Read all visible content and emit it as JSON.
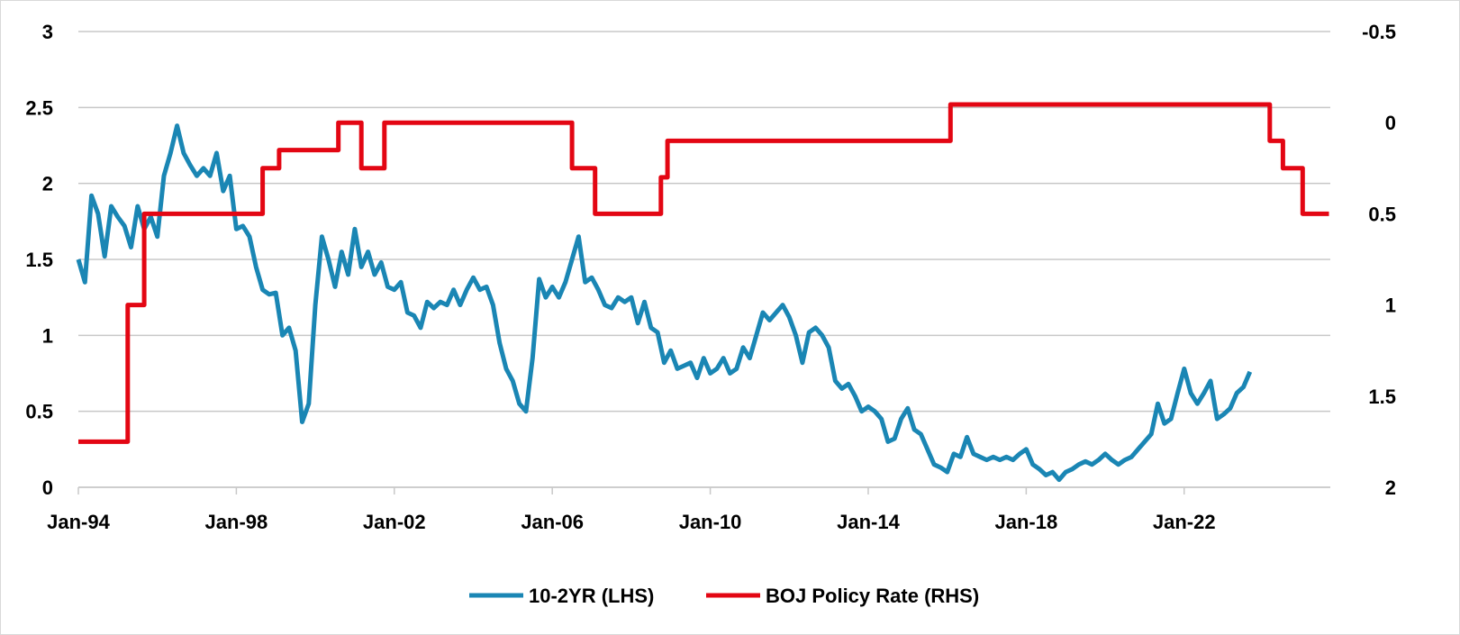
{
  "chart_data": {
    "type": "line",
    "title": "",
    "xlabel": "",
    "ylabel_left": "",
    "ylabel_right": "",
    "x_ticks": [
      "Jan-94",
      "Jan-98",
      "Jan-02",
      "Jan-06",
      "Jan-10",
      "Jan-14",
      "Jan-18",
      "Jan-22"
    ],
    "y_left": {
      "ticks": [
        "0",
        "0.5",
        "1",
        "1.5",
        "2",
        "2.5",
        "3"
      ],
      "range": [
        0,
        3
      ]
    },
    "y_right": {
      "ticks": [
        "-0.5",
        "0",
        "0.5",
        "1",
        "1.5",
        "2"
      ],
      "range": [
        -0.5,
        2
      ],
      "inverted": true
    },
    "grid": "horizontal",
    "legend_position": "bottom",
    "series": [
      {
        "name": "10-2YR (LHS)",
        "axis": "left",
        "color": "#1a86b4",
        "points": [
          [
            "1994-01",
            1.5
          ],
          [
            "1994-03",
            1.35
          ],
          [
            "1994-05",
            1.92
          ],
          [
            "1994-07",
            1.8
          ],
          [
            "1994-09",
            1.52
          ],
          [
            "1994-11",
            1.85
          ],
          [
            "1995-01",
            1.78
          ],
          [
            "1995-03",
            1.72
          ],
          [
            "1995-05",
            1.58
          ],
          [
            "1995-07",
            1.85
          ],
          [
            "1995-09",
            1.7
          ],
          [
            "1995-11",
            1.78
          ],
          [
            "1996-01",
            1.65
          ],
          [
            "1996-03",
            2.05
          ],
          [
            "1996-05",
            2.2
          ],
          [
            "1996-07",
            2.38
          ],
          [
            "1996-09",
            2.2
          ],
          [
            "1996-11",
            2.12
          ],
          [
            "1997-01",
            2.05
          ],
          [
            "1997-03",
            2.1
          ],
          [
            "1997-05",
            2.05
          ],
          [
            "1997-07",
            2.2
          ],
          [
            "1997-09",
            1.95
          ],
          [
            "1997-11",
            2.05
          ],
          [
            "1998-01",
            1.7
          ],
          [
            "1998-03",
            1.72
          ],
          [
            "1998-05",
            1.65
          ],
          [
            "1998-07",
            1.45
          ],
          [
            "1998-09",
            1.3
          ],
          [
            "1998-11",
            1.27
          ],
          [
            "1999-01",
            1.28
          ],
          [
            "1999-03",
            1.0
          ],
          [
            "1999-05",
            1.05
          ],
          [
            "1999-07",
            0.9
          ],
          [
            "1999-09",
            0.43
          ],
          [
            "1999-11",
            0.55
          ],
          [
            "2000-01",
            1.2
          ],
          [
            "2000-03",
            1.65
          ],
          [
            "2000-05",
            1.5
          ],
          [
            "2000-07",
            1.32
          ],
          [
            "2000-09",
            1.55
          ],
          [
            "2000-11",
            1.4
          ],
          [
            "2001-01",
            1.7
          ],
          [
            "2001-03",
            1.45
          ],
          [
            "2001-05",
            1.55
          ],
          [
            "2001-07",
            1.4
          ],
          [
            "2001-09",
            1.48
          ],
          [
            "2001-11",
            1.32
          ],
          [
            "2002-01",
            1.3
          ],
          [
            "2002-03",
            1.35
          ],
          [
            "2002-05",
            1.15
          ],
          [
            "2002-07",
            1.13
          ],
          [
            "2002-09",
            1.05
          ],
          [
            "2002-11",
            1.22
          ],
          [
            "2003-01",
            1.18
          ],
          [
            "2003-03",
            1.22
          ],
          [
            "2003-05",
            1.2
          ],
          [
            "2003-07",
            1.3
          ],
          [
            "2003-09",
            1.2
          ],
          [
            "2003-11",
            1.3
          ],
          [
            "2004-01",
            1.38
          ],
          [
            "2004-03",
            1.3
          ],
          [
            "2004-05",
            1.32
          ],
          [
            "2004-07",
            1.2
          ],
          [
            "2004-09",
            0.95
          ],
          [
            "2004-11",
            0.78
          ],
          [
            "2005-01",
            0.7
          ],
          [
            "2005-03",
            0.55
          ],
          [
            "2005-05",
            0.5
          ],
          [
            "2005-07",
            0.85
          ],
          [
            "2005-09",
            1.37
          ],
          [
            "2005-11",
            1.25
          ],
          [
            "2006-01",
            1.32
          ],
          [
            "2006-03",
            1.25
          ],
          [
            "2006-05",
            1.35
          ],
          [
            "2006-07",
            1.5
          ],
          [
            "2006-09",
            1.65
          ],
          [
            "2006-11",
            1.35
          ],
          [
            "2007-01",
            1.38
          ],
          [
            "2007-03",
            1.3
          ],
          [
            "2007-05",
            1.2
          ],
          [
            "2007-07",
            1.18
          ],
          [
            "2007-09",
            1.25
          ],
          [
            "2007-11",
            1.22
          ],
          [
            "2008-01",
            1.25
          ],
          [
            "2008-03",
            1.08
          ],
          [
            "2008-05",
            1.22
          ],
          [
            "2008-07",
            1.05
          ],
          [
            "2008-09",
            1.02
          ],
          [
            "2008-11",
            0.82
          ],
          [
            "2009-01",
            0.9
          ],
          [
            "2009-03",
            0.78
          ],
          [
            "2009-05",
            0.8
          ],
          [
            "2009-07",
            0.82
          ],
          [
            "2009-09",
            0.72
          ],
          [
            "2009-11",
            0.85
          ],
          [
            "2010-01",
            0.75
          ],
          [
            "2010-03",
            0.78
          ],
          [
            "2010-05",
            0.85
          ],
          [
            "2010-07",
            0.75
          ],
          [
            "2010-09",
            0.78
          ],
          [
            "2010-11",
            0.92
          ],
          [
            "2011-01",
            0.85
          ],
          [
            "2011-03",
            1.0
          ],
          [
            "2011-05",
            1.15
          ],
          [
            "2011-07",
            1.1
          ],
          [
            "2011-09",
            1.15
          ],
          [
            "2011-11",
            1.2
          ],
          [
            "2012-01",
            1.12
          ],
          [
            "2012-03",
            1.0
          ],
          [
            "2012-05",
            0.82
          ],
          [
            "2012-07",
            1.02
          ],
          [
            "2012-09",
            1.05
          ],
          [
            "2012-11",
            1.0
          ],
          [
            "2013-01",
            0.92
          ],
          [
            "2013-03",
            0.7
          ],
          [
            "2013-05",
            0.65
          ],
          [
            "2013-07",
            0.68
          ],
          [
            "2013-09",
            0.6
          ],
          [
            "2013-11",
            0.5
          ],
          [
            "2014-01",
            0.53
          ],
          [
            "2014-03",
            0.5
          ],
          [
            "2014-05",
            0.45
          ],
          [
            "2014-07",
            0.3
          ],
          [
            "2014-09",
            0.32
          ],
          [
            "2014-11",
            0.45
          ],
          [
            "2015-01",
            0.52
          ],
          [
            "2015-03",
            0.38
          ],
          [
            "2015-05",
            0.35
          ],
          [
            "2015-07",
            0.25
          ],
          [
            "2015-09",
            0.15
          ],
          [
            "2015-11",
            0.13
          ],
          [
            "2016-01",
            0.1
          ],
          [
            "2016-03",
            0.22
          ],
          [
            "2016-05",
            0.2
          ],
          [
            "2016-07",
            0.33
          ],
          [
            "2016-09",
            0.22
          ],
          [
            "2016-11",
            0.2
          ],
          [
            "2017-01",
            0.18
          ],
          [
            "2017-03",
            0.2
          ],
          [
            "2017-05",
            0.18
          ],
          [
            "2017-07",
            0.2
          ],
          [
            "2017-09",
            0.18
          ],
          [
            "2017-11",
            0.22
          ],
          [
            "2018-01",
            0.25
          ],
          [
            "2018-03",
            0.15
          ],
          [
            "2018-05",
            0.12
          ],
          [
            "2018-07",
            0.08
          ],
          [
            "2018-09",
            0.1
          ],
          [
            "2018-11",
            0.05
          ],
          [
            "2019-01",
            0.1
          ],
          [
            "2019-03",
            0.12
          ],
          [
            "2019-05",
            0.15
          ],
          [
            "2019-07",
            0.17
          ],
          [
            "2019-09",
            0.15
          ],
          [
            "2019-11",
            0.18
          ],
          [
            "2020-01",
            0.22
          ],
          [
            "2020-03",
            0.18
          ],
          [
            "2020-05",
            0.15
          ],
          [
            "2020-07",
            0.18
          ],
          [
            "2020-09",
            0.2
          ],
          [
            "2020-11",
            0.25
          ],
          [
            "2021-01",
            0.3
          ],
          [
            "2021-03",
            0.35
          ],
          [
            "2021-05",
            0.55
          ],
          [
            "2021-07",
            0.42
          ],
          [
            "2021-09",
            0.45
          ],
          [
            "2021-11",
            0.62
          ],
          [
            "2022-01",
            0.78
          ],
          [
            "2022-03",
            0.62
          ],
          [
            "2022-05",
            0.55
          ],
          [
            "2022-07",
            0.62
          ],
          [
            "2022-09",
            0.7
          ],
          [
            "2022-11",
            0.45
          ],
          [
            "2023-01",
            0.48
          ],
          [
            "2023-03",
            0.52
          ],
          [
            "2023-05",
            0.62
          ],
          [
            "2023-07",
            0.66
          ],
          [
            "2023-09",
            0.76
          ]
        ]
      },
      {
        "name": "BOJ Policy Rate (RHS)",
        "axis": "right",
        "color": "#e30613",
        "points": [
          [
            "1994-01",
            1.75
          ],
          [
            "1995-04",
            1.75
          ],
          [
            "1995-04",
            1.0
          ],
          [
            "1995-09",
            1.0
          ],
          [
            "1995-09",
            0.5
          ],
          [
            "1998-09",
            0.5
          ],
          [
            "1998-09",
            0.25
          ],
          [
            "1999-02",
            0.25
          ],
          [
            "1999-02",
            0.15
          ],
          [
            "2000-08",
            0.15
          ],
          [
            "2000-08",
            0.0
          ],
          [
            "2001-03",
            0.0
          ],
          [
            "2001-03",
            0.25
          ],
          [
            "2001-10",
            0.25
          ],
          [
            "2001-10",
            0.0
          ],
          [
            "2006-07",
            0.0
          ],
          [
            "2006-07",
            0.25
          ],
          [
            "2007-02",
            0.25
          ],
          [
            "2007-02",
            0.5
          ],
          [
            "2008-10",
            0.5
          ],
          [
            "2008-10",
            0.3
          ],
          [
            "2008-12",
            0.3
          ],
          [
            "2008-12",
            0.1
          ],
          [
            "2016-02",
            0.1
          ],
          [
            "2016-02",
            -0.1
          ],
          [
            "2024-03",
            -0.1
          ],
          [
            "2024-03",
            0.1
          ],
          [
            "2024-07",
            0.1
          ],
          [
            "2024-07",
            0.25
          ],
          [
            "2025-01",
            0.25
          ],
          [
            "2025-01",
            0.5
          ],
          [
            "2025-09",
            0.5
          ]
        ]
      }
    ]
  }
}
